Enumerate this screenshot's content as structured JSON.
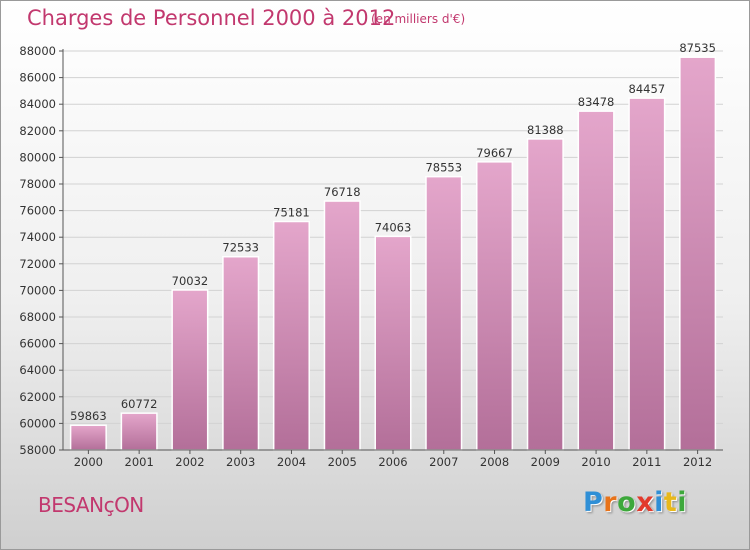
{
  "header": {
    "title": "Charges de Personnel 2000 à 2012",
    "subtitle": "(en milliers d'€)"
  },
  "footer": {
    "city": "BESANçON",
    "logo_letters": [
      {
        "ch": "P",
        "color": "#2f8fd6"
      },
      {
        "ch": "r",
        "color": "#e8731a"
      },
      {
        "ch": "o",
        "color": "#3da83b"
      },
      {
        "ch": "x",
        "color": "#e23a2c"
      },
      {
        "ch": "i",
        "color": "#2f8fd6"
      },
      {
        "ch": "t",
        "color": "#e8b81a"
      },
      {
        "ch": "i",
        "color": "#3da83b"
      }
    ]
  },
  "chart_data": {
    "type": "bar",
    "categories": [
      "2000",
      "2001",
      "2002",
      "2003",
      "2004",
      "2005",
      "2006",
      "2007",
      "2008",
      "2009",
      "2010",
      "2011",
      "2012"
    ],
    "values": [
      59863,
      60772,
      70032,
      72533,
      75181,
      76718,
      74063,
      78553,
      79667,
      81388,
      83478,
      84457,
      87535
    ],
    "ylim": [
      58000,
      88000
    ],
    "yticks": [
      58000,
      60000,
      62000,
      64000,
      66000,
      68000,
      70000,
      72000,
      74000,
      76000,
      78000,
      80000,
      82000,
      84000,
      86000,
      88000
    ],
    "grid": true,
    "bar_color_top": "#e4a6cb",
    "bar_color_bottom": "#b36f99"
  }
}
